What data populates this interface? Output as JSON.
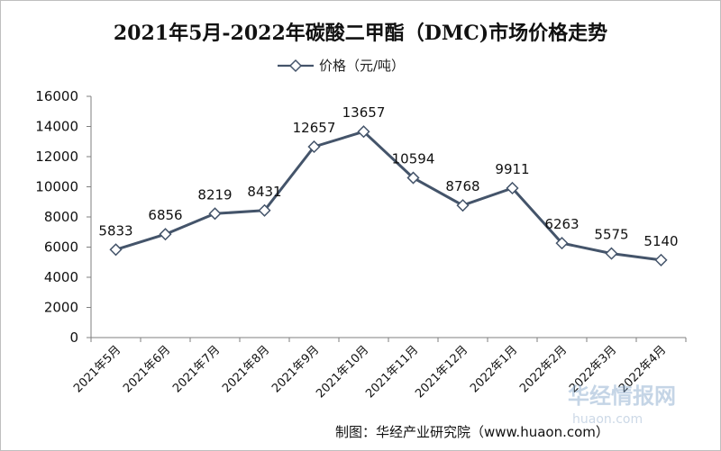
{
  "chart_data": {
    "type": "line",
    "title": "2021年5月-2022年碳酸二甲酯（DMC)市场价格走势",
    "categories": [
      "2021年5月",
      "2021年6月",
      "2021年7月",
      "2021年8月",
      "2021年9月",
      "2021年10月",
      "2021年11月",
      "2021年12月",
      "2022年1月",
      "2022年2月",
      "2022年3月",
      "2022年4月"
    ],
    "series": [
      {
        "name": "价格（元/吨）",
        "values": [
          5833,
          6856,
          8219,
          8431,
          12657,
          13657,
          10594,
          8768,
          9911,
          6263,
          5575,
          5140
        ]
      }
    ],
    "ylim": [
      0,
      16000
    ],
    "yticks": [
      0,
      2000,
      4000,
      6000,
      8000,
      10000,
      12000,
      14000,
      16000
    ],
    "xlabel": "",
    "ylabel": "",
    "legend": "top-center",
    "grid": false,
    "line_color": "#44546a",
    "marker": "diamond"
  },
  "source": "制图：华经产业研究院（www.huaon.com）",
  "watermark": {
    "text": "华经情报网",
    "sub": "huaon.com"
  }
}
